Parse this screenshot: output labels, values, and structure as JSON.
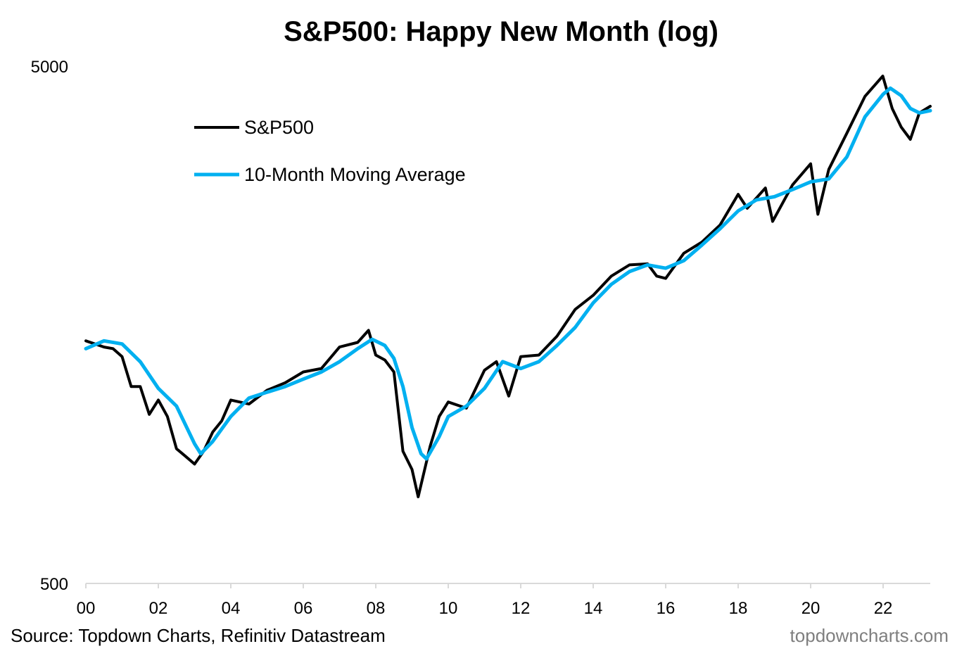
{
  "chart_data": {
    "type": "line",
    "title": "S&P500: Happy New Month (log)",
    "y_scale": "log",
    "ylim": [
      500,
      5000
    ],
    "y_ticks": [
      "5000",
      "500"
    ],
    "xlim": [
      2000,
      2023.3
    ],
    "x_ticks": [
      "00",
      "02",
      "04",
      "06",
      "08",
      "10",
      "12",
      "14",
      "16",
      "18",
      "20",
      "22"
    ],
    "legend_position": "upper-left",
    "grid": false,
    "series": [
      {
        "name": "S&P500",
        "color": "#000000",
        "x": [
          2000.0,
          2000.25,
          2000.5,
          2000.75,
          2001.0,
          2001.25,
          2001.5,
          2001.75,
          2002.0,
          2002.25,
          2002.5,
          2002.75,
          2003.0,
          2003.25,
          2003.5,
          2003.75,
          2004.0,
          2004.5,
          2005.0,
          2005.5,
          2006.0,
          2006.5,
          2007.0,
          2007.5,
          2007.8,
          2008.0,
          2008.25,
          2008.5,
          2008.75,
          2009.0,
          2009.17,
          2009.5,
          2009.75,
          2010.0,
          2010.33,
          2010.5,
          2011.0,
          2011.33,
          2011.67,
          2012.0,
          2012.5,
          2013.0,
          2013.5,
          2014.0,
          2014.5,
          2015.0,
          2015.5,
          2015.75,
          2016.0,
          2016.5,
          2017.0,
          2017.5,
          2018.0,
          2018.25,
          2018.75,
          2018.95,
          2019.5,
          2020.0,
          2020.2,
          2020.5,
          2021.0,
          2021.5,
          2021.99,
          2022.25,
          2022.5,
          2022.75,
          2023.0,
          2023.3
        ],
        "values": [
          1470,
          1450,
          1430,
          1420,
          1370,
          1200,
          1200,
          1060,
          1130,
          1050,
          910,
          880,
          850,
          900,
          980,
          1030,
          1130,
          1110,
          1180,
          1220,
          1280,
          1300,
          1430,
          1460,
          1540,
          1380,
          1350,
          1280,
          900,
          830,
          735,
          920,
          1050,
          1120,
          1100,
          1090,
          1290,
          1340,
          1150,
          1370,
          1380,
          1500,
          1690,
          1800,
          1960,
          2060,
          2070,
          1960,
          1940,
          2170,
          2280,
          2460,
          2820,
          2650,
          2900,
          2500,
          2940,
          3230,
          2580,
          3150,
          3700,
          4360,
          4770,
          4130,
          3800,
          3600,
          4050,
          4170
        ]
      },
      {
        "name": "10-Month Moving Average",
        "color": "#00b0f0",
        "x": [
          2000.0,
          2000.5,
          2001.0,
          2001.5,
          2002.0,
          2002.5,
          2003.0,
          2003.17,
          2003.5,
          2004.0,
          2004.5,
          2005.0,
          2005.5,
          2006.0,
          2006.5,
          2007.0,
          2007.5,
          2007.9,
          2008.25,
          2008.5,
          2008.75,
          2009.0,
          2009.25,
          2009.4,
          2009.75,
          2010.0,
          2010.5,
          2011.0,
          2011.5,
          2012.0,
          2012.5,
          2013.0,
          2013.5,
          2014.0,
          2014.5,
          2015.0,
          2015.5,
          2016.0,
          2016.5,
          2017.0,
          2017.5,
          2018.0,
          2018.5,
          2019.0,
          2019.5,
          2020.0,
          2020.5,
          2021.0,
          2021.5,
          2022.0,
          2022.2,
          2022.5,
          2022.75,
          2023.0,
          2023.3
        ],
        "values": [
          1420,
          1470,
          1450,
          1340,
          1190,
          1100,
          930,
          890,
          940,
          1050,
          1140,
          1170,
          1200,
          1240,
          1280,
          1340,
          1420,
          1480,
          1440,
          1360,
          1200,
          1000,
          890,
          870,
          960,
          1050,
          1100,
          1190,
          1340,
          1300,
          1340,
          1440,
          1560,
          1740,
          1890,
          2000,
          2060,
          2030,
          2100,
          2250,
          2420,
          2620,
          2750,
          2790,
          2880,
          2980,
          3020,
          3330,
          3980,
          4400,
          4520,
          4370,
          4130,
          4050,
          4090
        ]
      }
    ]
  },
  "legend": {
    "items": [
      {
        "label": "S&P500",
        "color": "#000000"
      },
      {
        "label": "10-Month Moving Average",
        "color": "#00b0f0"
      }
    ]
  },
  "footer": {
    "source": "Source: Topdown Charts, Refinitiv Datastream",
    "credit": "topdowncharts.com"
  }
}
